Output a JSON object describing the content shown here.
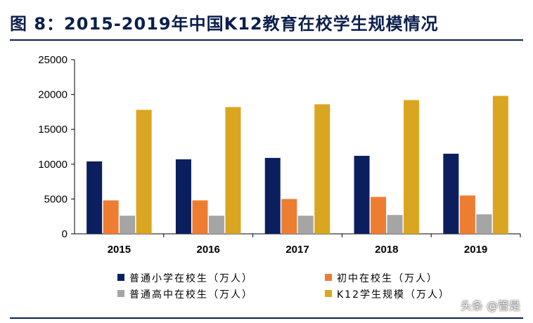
{
  "title": "图 8：2015-2019年中国K12教育在校学生规模情况",
  "watermark": "头条 @管是",
  "colors": {
    "primary": "#0b1f5e",
    "junior": "#ed7d31",
    "senior": "#a5a5a5",
    "k12": "#daa520",
    "rule": "#0b1f4d"
  },
  "chart_data": {
    "type": "bar",
    "categories": [
      "2015",
      "2016",
      "2017",
      "2018",
      "2019"
    ],
    "ylim": [
      0,
      25000
    ],
    "yticks": [
      0,
      5000,
      10000,
      15000,
      20000,
      25000
    ],
    "grid": false,
    "legend_position": "bottom",
    "series": [
      {
        "name": "普通小学在校生（万人）",
        "values": [
          10400,
          10700,
          10900,
          11200,
          11500
        ]
      },
      {
        "name": "初中在校生（万人）",
        "values": [
          4800,
          4800,
          5000,
          5300,
          5500
        ]
      },
      {
        "name": "普通高中在校生（万人）",
        "values": [
          2600,
          2600,
          2600,
          2700,
          2800
        ]
      },
      {
        "name": "K12学生规模（万人）",
        "values": [
          17800,
          18200,
          18600,
          19200,
          19800
        ]
      }
    ]
  }
}
